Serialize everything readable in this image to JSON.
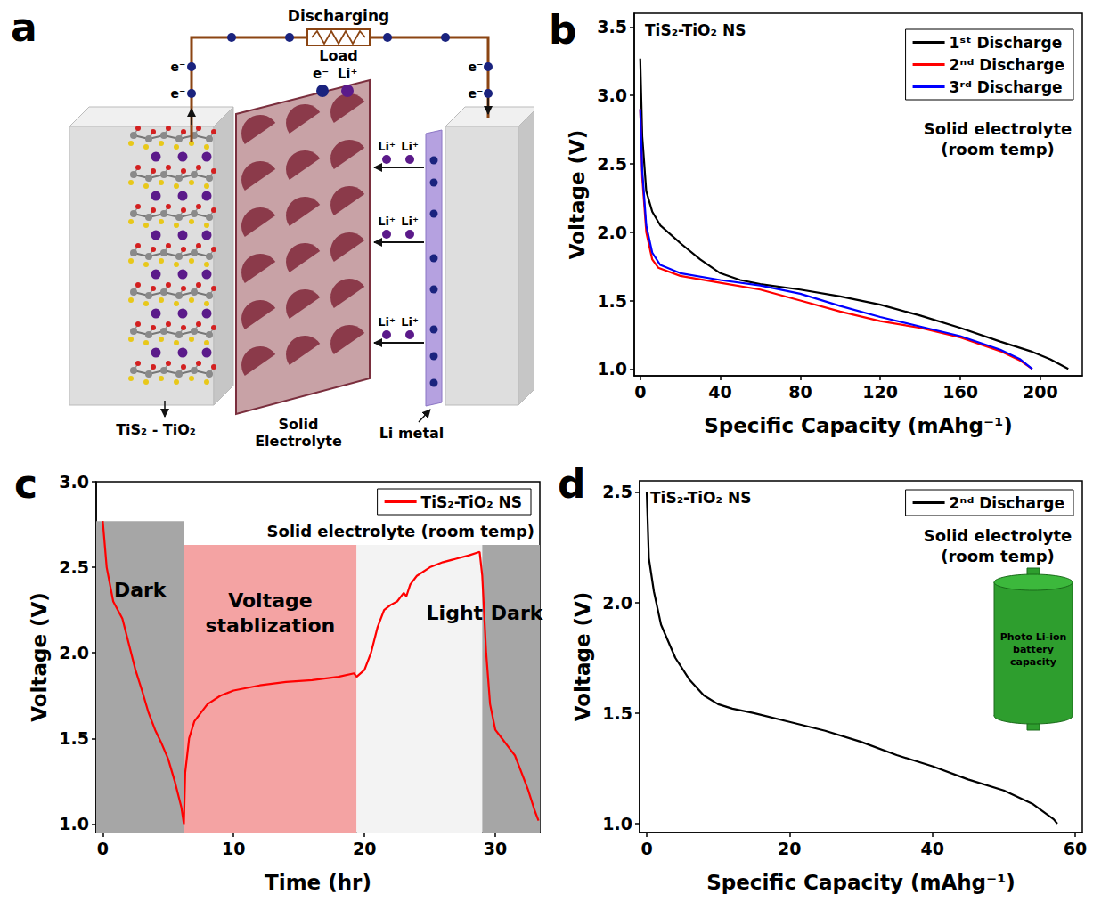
{
  "diagram": {
    "panel": "a",
    "circuit_label": "Discharging",
    "load_label": "Load",
    "electron": "e⁻",
    "ion": "Li⁺",
    "cathode": "TiS₂ - TiO₂",
    "electrolyte": "Solid Electrolyte",
    "anode": "Li metal"
  },
  "chart_data": [
    {
      "panel": "b",
      "type": "line",
      "title": "TiS₂-TiO₂ NS",
      "annotations": [
        "Solid electrolyte\n(room temp)"
      ],
      "x_label": "Specific Capacity (mAhg⁻¹)",
      "y_label": "Voltage (V)",
      "xlim": [
        -3,
        221
      ],
      "xticks": [
        0,
        40,
        80,
        120,
        160,
        200
      ],
      "ylim": [
        0.95,
        3.6
      ],
      "yticks": [
        {
          "value": 1,
          "label": "1.0"
        },
        1.5,
        {
          "value": 2,
          "label": "2.0"
        },
        2.5,
        {
          "value": 3,
          "label": "3.0"
        },
        3.5
      ],
      "grid": false,
      "legend": "top-right",
      "marker": "none",
      "series": [
        {
          "name": "1ˢᵗ Discharge",
          "color": "#000000",
          "x": [
            0,
            1,
            3,
            6,
            10,
            20,
            30,
            40,
            50,
            60,
            80,
            100,
            120,
            140,
            160,
            180,
            195,
            205,
            214
          ],
          "values": [
            3.27,
            2.7,
            2.3,
            2.15,
            2.05,
            1.92,
            1.8,
            1.7,
            1.65,
            1.62,
            1.58,
            1.53,
            1.47,
            1.39,
            1.3,
            1.2,
            1.13,
            1.07,
            1.0
          ]
        },
        {
          "name": "2ⁿᵈ Discharge",
          "color": "#ff0000",
          "x": [
            0,
            1,
            3,
            6,
            9,
            20,
            40,
            60,
            80,
            100,
            120,
            140,
            160,
            180,
            190,
            196
          ],
          "values": [
            2.9,
            2.4,
            2.0,
            1.8,
            1.74,
            1.68,
            1.63,
            1.58,
            1.5,
            1.42,
            1.35,
            1.3,
            1.23,
            1.13,
            1.06,
            1.0
          ]
        },
        {
          "name": "3ʳᵈ Discharge",
          "color": "#0000ff",
          "x": [
            0,
            1,
            3,
            6,
            10,
            20,
            40,
            60,
            80,
            100,
            120,
            140,
            160,
            180,
            190,
            196
          ],
          "values": [
            2.9,
            2.45,
            2.05,
            1.85,
            1.76,
            1.7,
            1.65,
            1.61,
            1.55,
            1.46,
            1.38,
            1.31,
            1.24,
            1.14,
            1.07,
            1.0
          ]
        }
      ]
    },
    {
      "panel": "c",
      "type": "line",
      "annotations": [
        "Solid electrolyte (room temp)"
      ],
      "x_label": "Time (hr)",
      "y_label": "Voltage (V)",
      "xlim": [
        -0.5,
        33.4
      ],
      "xticks": [
        0,
        10,
        20,
        30
      ],
      "ylim": [
        0.95,
        3.0
      ],
      "yticks": [
        {
          "value": 1,
          "label": "1.0"
        },
        1.5,
        {
          "value": 2,
          "label": "2.0"
        },
        2.5,
        {
          "value": 3,
          "label": "3.0"
        }
      ],
      "grid": false,
      "legend": "top-right",
      "marker": "none",
      "regions": [
        {
          "label": "Dark",
          "x": [
            -0.5,
            6.2
          ],
          "y": [
            0.95,
            2.77
          ],
          "color": "#a6a6a6"
        },
        {
          "label": "Voltage stablization",
          "x": [
            6.2,
            19.4
          ],
          "y": [
            0.95,
            2.63
          ],
          "color": "#f4a3a3"
        },
        {
          "label": "Light",
          "x": [
            19.4,
            29
          ],
          "y": [
            0.95,
            2.63
          ],
          "color": "#f3f3f3"
        },
        {
          "label": "Dark",
          "x": [
            29,
            33.4
          ],
          "y": [
            0.95,
            2.63
          ],
          "color": "#a6a6a6"
        }
      ],
      "series": [
        {
          "name": "TiS₂-TiO₂ NS",
          "color": "#ff0000",
          "x": [
            0,
            0.3,
            0.8,
            1.5,
            2,
            2.5,
            3,
            3.5,
            4,
            4.5,
            5,
            5.5,
            6,
            6.2,
            6.3,
            6.6,
            7,
            8,
            9,
            10,
            12,
            14,
            16,
            18,
            19.2,
            19.4,
            20,
            20.5,
            21,
            21.5,
            22,
            22.5,
            23,
            23.2,
            23.5,
            24,
            25,
            26,
            27,
            28,
            28.8,
            29,
            29.3,
            29.6,
            30,
            30.5,
            31,
            31.5,
            32,
            32.5,
            33,
            33.3
          ],
          "values": [
            2.77,
            2.5,
            2.3,
            2.2,
            2.05,
            1.9,
            1.78,
            1.65,
            1.55,
            1.47,
            1.38,
            1.25,
            1.1,
            1.0,
            1.3,
            1.5,
            1.6,
            1.7,
            1.75,
            1.78,
            1.81,
            1.83,
            1.84,
            1.86,
            1.88,
            1.86,
            1.9,
            2.0,
            2.15,
            2.25,
            2.28,
            2.3,
            2.35,
            2.33,
            2.4,
            2.45,
            2.5,
            2.53,
            2.55,
            2.57,
            2.59,
            2.45,
            2.0,
            1.7,
            1.55,
            1.5,
            1.45,
            1.4,
            1.3,
            1.2,
            1.08,
            1.02
          ]
        }
      ]
    },
    {
      "panel": "d",
      "type": "line",
      "title": "TiS₂-TiO₂ NS",
      "annotations": [
        "Solid electrolyte\n(room temp)"
      ],
      "inset": "Photo Li-ion battery capacity",
      "x_label": "Specific Capacity (mAhg⁻¹)",
      "y_label": "Voltage (V)",
      "xlim": [
        -1,
        61
      ],
      "xticks": [
        0,
        20,
        40,
        60
      ],
      "ylim": [
        0.96,
        2.55
      ],
      "yticks": [
        {
          "value": 1,
          "label": "1.0"
        },
        1.5,
        {
          "value": 2,
          "label": "2.0"
        },
        2.5
      ],
      "grid": false,
      "legend": "top-right",
      "marker": "none",
      "series": [
        {
          "name": "2ⁿᵈ Discharge",
          "color": "#000000",
          "x": [
            0,
            0.3,
            1,
            2,
            4,
            6,
            8,
            10,
            12,
            15,
            20,
            25,
            30,
            35,
            40,
            45,
            50,
            54,
            57,
            57.5
          ],
          "values": [
            2.5,
            2.2,
            2.05,
            1.9,
            1.75,
            1.65,
            1.58,
            1.54,
            1.52,
            1.5,
            1.46,
            1.42,
            1.37,
            1.31,
            1.26,
            1.2,
            1.15,
            1.09,
            1.02,
            1.0
          ]
        }
      ]
    }
  ]
}
